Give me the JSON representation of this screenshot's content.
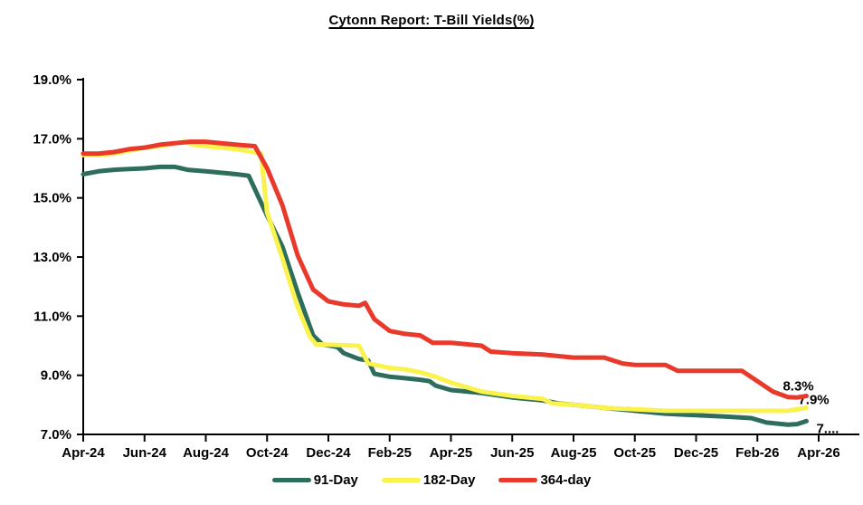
{
  "title": "Cytonn Report: T-Bill Yields(%)",
  "chart_data": {
    "type": "line",
    "title": "Cytonn Report: T-Bill Yields(%)",
    "grid": false,
    "legend_position": "bottom",
    "axis_color": "#000000",
    "x_axis": {
      "unit": "months since Apr-2024",
      "tick_positions_months": [
        0,
        2,
        4,
        6,
        8,
        10,
        12,
        14,
        16,
        18,
        20,
        22,
        24
      ],
      "tick_labels": [
        "Apr-24",
        "Jun-24",
        "Aug-24",
        "Oct-24",
        "Dec-24",
        "Feb-25",
        "Apr-25",
        "Jun-25",
        "Aug-25",
        "Oct-25",
        "Dec-25",
        "Feb-26",
        "Apr-26"
      ]
    },
    "y_axis": {
      "min": 7.0,
      "max": 19.0,
      "format": "percent",
      "ticks": [
        {
          "v": 7.0,
          "label": "7.0%"
        },
        {
          "v": 9.0,
          "label": "9.0%"
        },
        {
          "v": 11.0,
          "label": "11.0%"
        },
        {
          "v": 13.0,
          "label": "13.0%"
        },
        {
          "v": 15.0,
          "label": "15.0%"
        },
        {
          "v": 17.0,
          "label": "17.0%"
        },
        {
          "v": 19.0,
          "label": "19.0%"
        }
      ]
    },
    "series": [
      {
        "name": "91-Day",
        "color": "#2E6D5C",
        "end_label": "7....",
        "points": [
          [
            0,
            15.8
          ],
          [
            0.5,
            15.9
          ],
          [
            1,
            15.95
          ],
          [
            2,
            16.0
          ],
          [
            2.5,
            16.05
          ],
          [
            3,
            16.05
          ],
          [
            3.4,
            15.95
          ],
          [
            4,
            15.9
          ],
          [
            4.5,
            15.85
          ],
          [
            5,
            15.8
          ],
          [
            5.4,
            15.75
          ],
          [
            6,
            14.4
          ],
          [
            6.5,
            13.35
          ],
          [
            7,
            11.8
          ],
          [
            7.5,
            10.35
          ],
          [
            7.8,
            10.05
          ],
          [
            8.3,
            9.95
          ],
          [
            8.5,
            9.75
          ],
          [
            9,
            9.55
          ],
          [
            9.3,
            9.5
          ],
          [
            9.5,
            9.05
          ],
          [
            10,
            8.95
          ],
          [
            10.5,
            8.9
          ],
          [
            11,
            8.85
          ],
          [
            11.3,
            8.8
          ],
          [
            11.5,
            8.65
          ],
          [
            12,
            8.5
          ],
          [
            13,
            8.4
          ],
          [
            14,
            8.25
          ],
          [
            15,
            8.15
          ],
          [
            15.5,
            8.05
          ],
          [
            16,
            8.0
          ],
          [
            17,
            7.9
          ],
          [
            18,
            7.8
          ],
          [
            19,
            7.7
          ],
          [
            20,
            7.65
          ],
          [
            21,
            7.6
          ],
          [
            21.8,
            7.55
          ],
          [
            22.3,
            7.4
          ],
          [
            23,
            7.33
          ],
          [
            23.3,
            7.35
          ],
          [
            23.6,
            7.45
          ]
        ]
      },
      {
        "name": "182-Day",
        "color": "#FAF34E",
        "end_label": "7.9%",
        "points": [
          [
            0,
            16.45
          ],
          [
            0.5,
            16.45
          ],
          [
            1,
            16.5
          ],
          [
            1.5,
            16.6
          ],
          [
            2,
            16.7
          ],
          [
            2.5,
            16.75
          ],
          [
            3,
            16.85
          ],
          [
            3.3,
            16.9
          ],
          [
            3.6,
            16.8
          ],
          [
            4,
            16.75
          ],
          [
            4.5,
            16.7
          ],
          [
            5,
            16.65
          ],
          [
            5.3,
            16.6
          ],
          [
            5.8,
            16.5
          ],
          [
            6,
            14.5
          ],
          [
            6.5,
            12.95
          ],
          [
            7,
            11.3
          ],
          [
            7.4,
            10.3
          ],
          [
            7.6,
            10.05
          ],
          [
            9,
            10.0
          ],
          [
            9.3,
            9.4
          ],
          [
            10,
            9.25
          ],
          [
            10.5,
            9.2
          ],
          [
            11,
            9.1
          ],
          [
            11.5,
            8.95
          ],
          [
            12,
            8.75
          ],
          [
            12.5,
            8.6
          ],
          [
            13,
            8.45
          ],
          [
            14,
            8.3
          ],
          [
            15,
            8.2
          ],
          [
            15.3,
            8.05
          ],
          [
            16,
            8.0
          ],
          [
            17,
            7.9
          ],
          [
            18,
            7.85
          ],
          [
            19,
            7.8
          ],
          [
            20,
            7.8
          ],
          [
            21,
            7.8
          ],
          [
            22,
            7.8
          ],
          [
            23,
            7.8
          ],
          [
            23.6,
            7.9
          ]
        ]
      },
      {
        "name": "364-day",
        "color": "#E8392B",
        "end_label": "8.3%",
        "points": [
          [
            0,
            16.5
          ],
          [
            0.5,
            16.5
          ],
          [
            1,
            16.55
          ],
          [
            1.5,
            16.65
          ],
          [
            2,
            16.7
          ],
          [
            2.5,
            16.8
          ],
          [
            3,
            16.85
          ],
          [
            3.5,
            16.9
          ],
          [
            4,
            16.9
          ],
          [
            4.5,
            16.85
          ],
          [
            5,
            16.8
          ],
          [
            5.6,
            16.75
          ],
          [
            6,
            16.0
          ],
          [
            6.5,
            14.75
          ],
          [
            7,
            13.05
          ],
          [
            7.5,
            11.9
          ],
          [
            8,
            11.5
          ],
          [
            8.5,
            11.4
          ],
          [
            9,
            11.35
          ],
          [
            9.2,
            11.45
          ],
          [
            9.5,
            10.9
          ],
          [
            10,
            10.5
          ],
          [
            10.5,
            10.4
          ],
          [
            11,
            10.35
          ],
          [
            11.4,
            10.1
          ],
          [
            12,
            10.1
          ],
          [
            13,
            10.0
          ],
          [
            13.3,
            9.8
          ],
          [
            14,
            9.75
          ],
          [
            15,
            9.7
          ],
          [
            16,
            9.6
          ],
          [
            17,
            9.6
          ],
          [
            17.6,
            9.4
          ],
          [
            18,
            9.35
          ],
          [
            19,
            9.35
          ],
          [
            19.4,
            9.15
          ],
          [
            21,
            9.15
          ],
          [
            21.5,
            9.15
          ],
          [
            22,
            8.8
          ],
          [
            22.5,
            8.45
          ],
          [
            23,
            8.26
          ],
          [
            23.3,
            8.25
          ],
          [
            23.6,
            8.3
          ]
        ]
      }
    ]
  }
}
